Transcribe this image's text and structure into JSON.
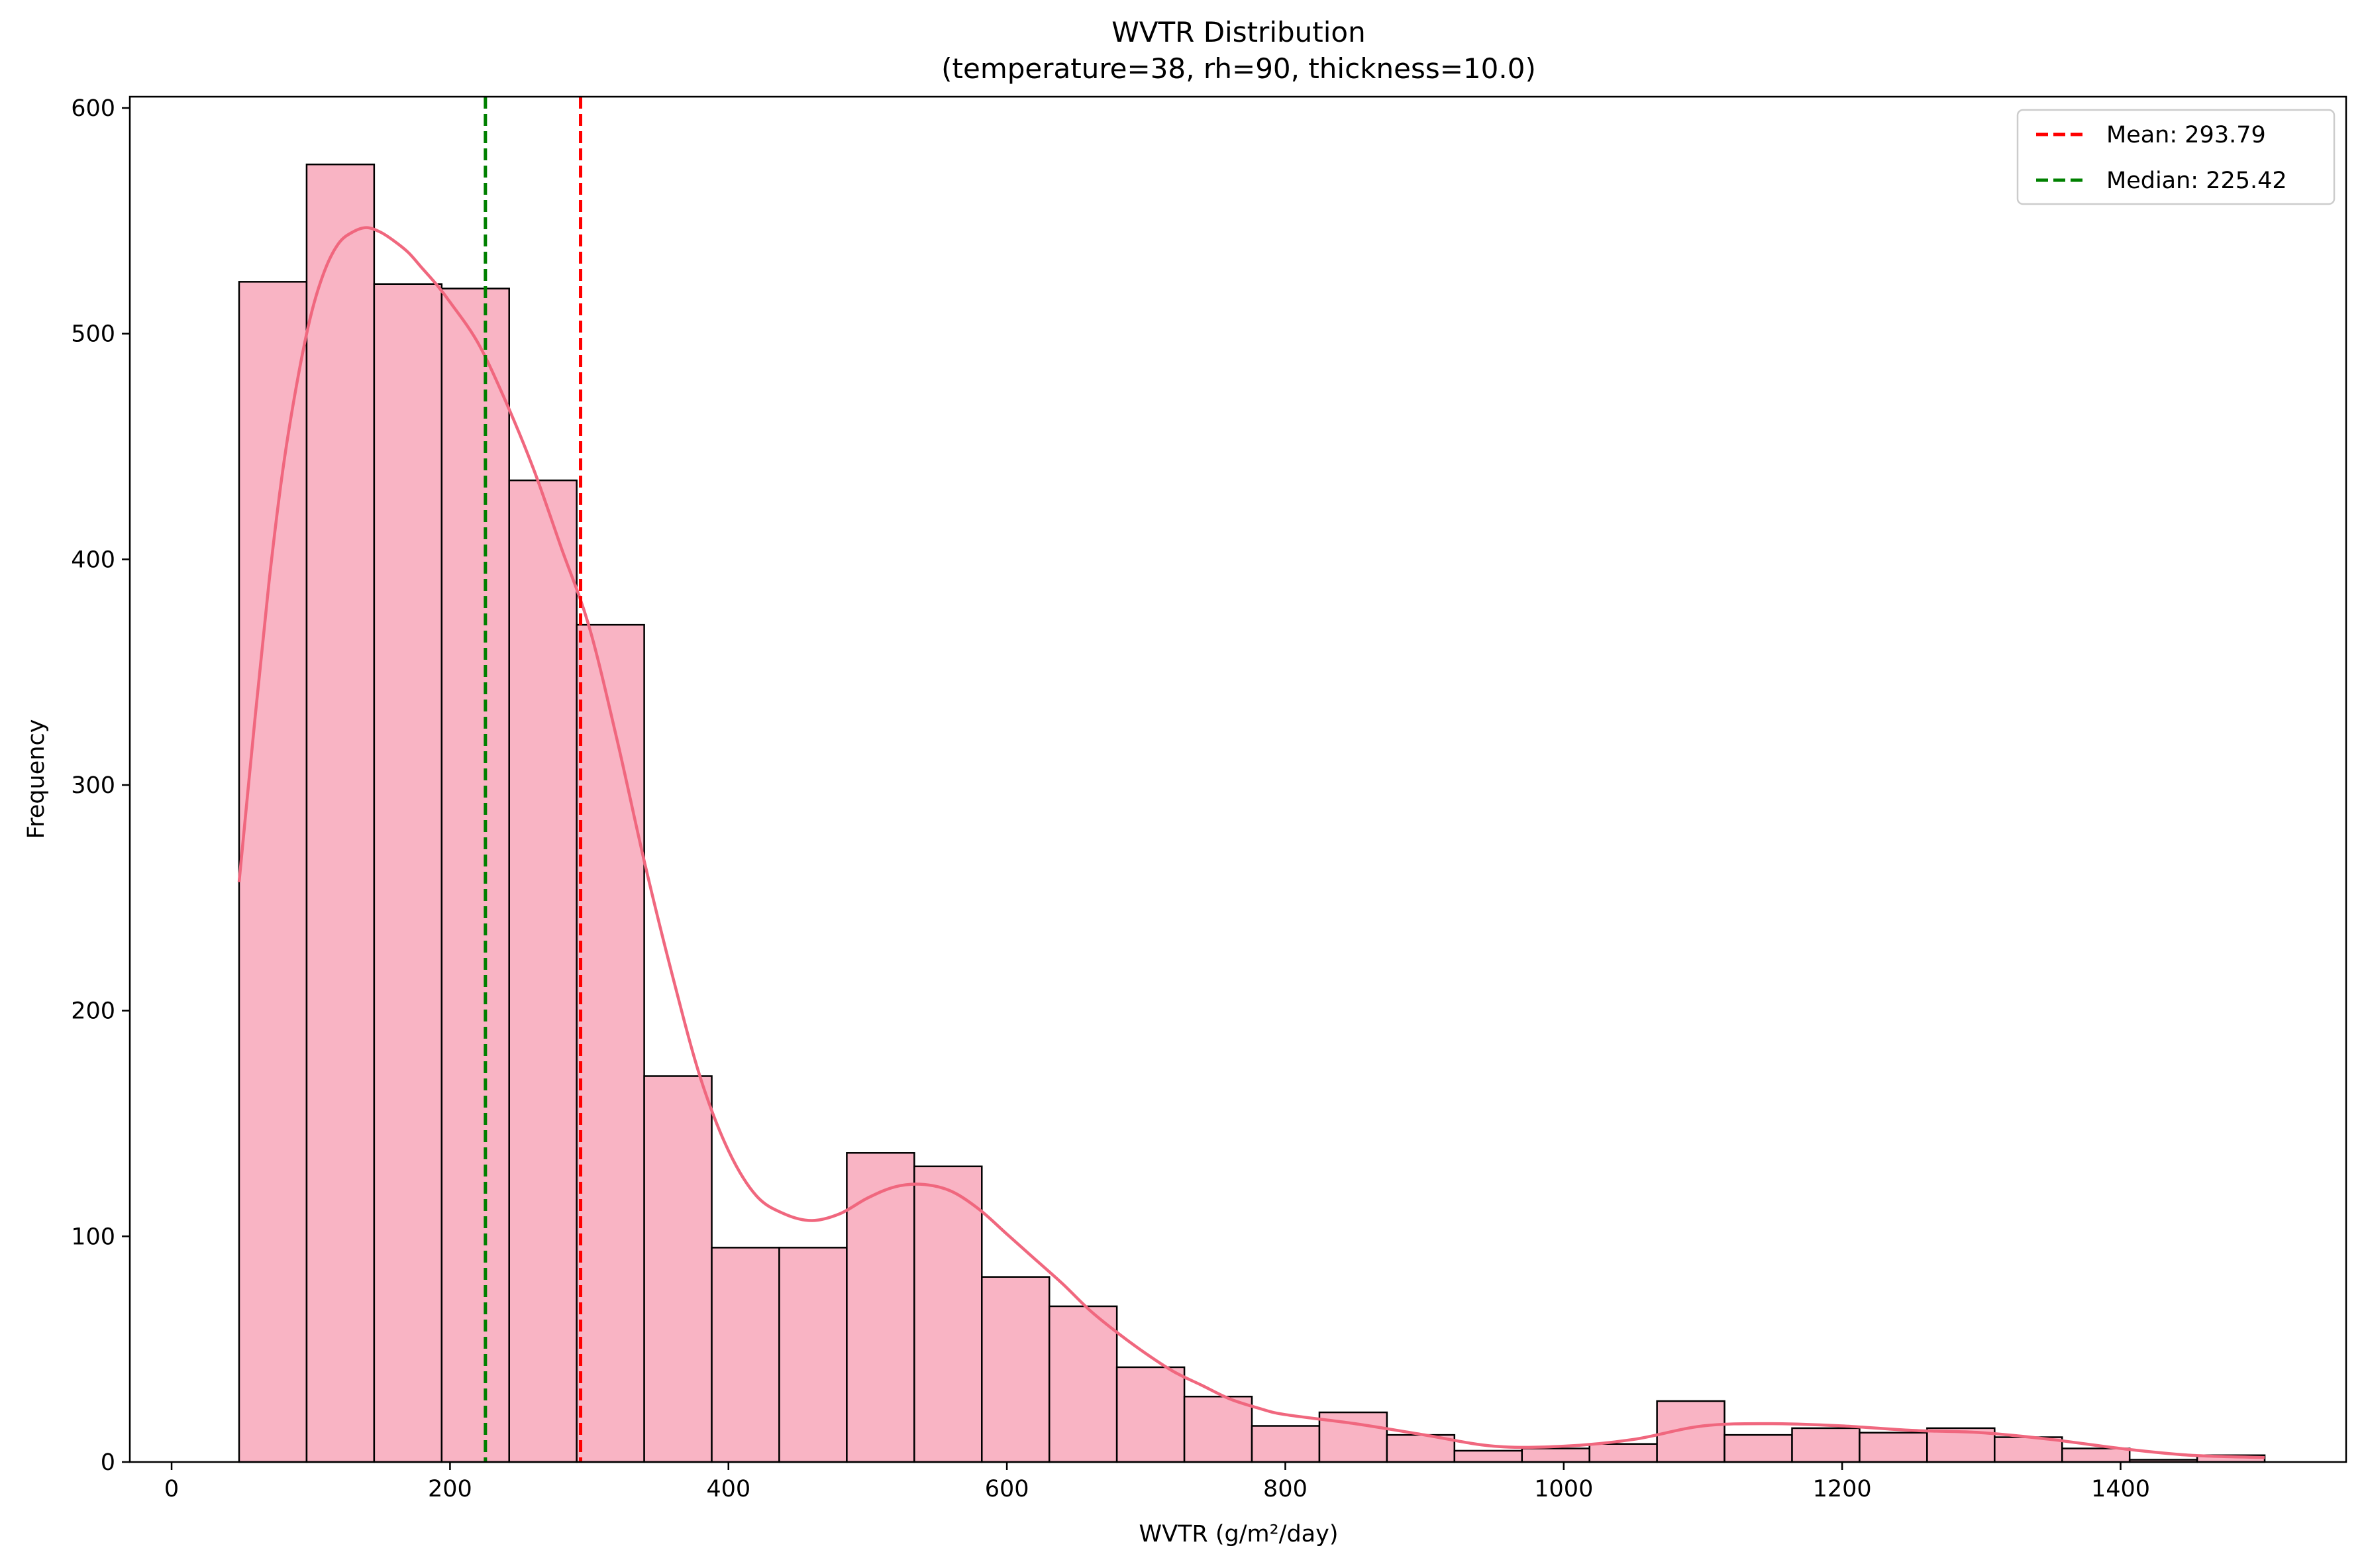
{
  "chart_data": {
    "type": "histogram",
    "title": "WVTR Distribution",
    "subtitle": "(temperature=38, rh=90, thickness=10.0)",
    "xlabel": "WVTR (g/m²/day)",
    "ylabel": "Frequency",
    "xlim": [
      -30,
      1562
    ],
    "ylim": [
      0,
      605
    ],
    "x_ticks": [
      0,
      200,
      400,
      600,
      800,
      1000,
      1200,
      1400
    ],
    "y_ticks": [
      0,
      100,
      200,
      300,
      400,
      500,
      600
    ],
    "grid": false,
    "legend_position": "top-right",
    "bins": [
      {
        "x0": 48.5,
        "x1": 97.0,
        "count": 523
      },
      {
        "x0": 97.0,
        "x1": 145.5,
        "count": 575
      },
      {
        "x0": 145.5,
        "x1": 194.0,
        "count": 522
      },
      {
        "x0": 194.0,
        "x1": 242.5,
        "count": 520
      },
      {
        "x0": 242.5,
        "x1": 291.0,
        "count": 435
      },
      {
        "x0": 291.0,
        "x1": 339.5,
        "count": 371
      },
      {
        "x0": 339.5,
        "x1": 388.0,
        "count": 171
      },
      {
        "x0": 388.0,
        "x1": 436.5,
        "count": 95
      },
      {
        "x0": 436.5,
        "x1": 485.0,
        "count": 95
      },
      {
        "x0": 485.0,
        "x1": 533.5,
        "count": 137
      },
      {
        "x0": 533.5,
        "x1": 582.0,
        "count": 131
      },
      {
        "x0": 582.0,
        "x1": 630.5,
        "count": 82
      },
      {
        "x0": 630.5,
        "x1": 679.0,
        "count": 69
      },
      {
        "x0": 679.0,
        "x1": 727.5,
        "count": 42
      },
      {
        "x0": 727.5,
        "x1": 776.0,
        "count": 29
      },
      {
        "x0": 776.0,
        "x1": 824.5,
        "count": 16
      },
      {
        "x0": 824.5,
        "x1": 873.0,
        "count": 22
      },
      {
        "x0": 873.0,
        "x1": 921.5,
        "count": 12
      },
      {
        "x0": 921.5,
        "x1": 970.0,
        "count": 5
      },
      {
        "x0": 970.0,
        "x1": 1018.5,
        "count": 6
      },
      {
        "x0": 1018.5,
        "x1": 1067.0,
        "count": 8
      },
      {
        "x0": 1067.0,
        "x1": 1115.5,
        "count": 27
      },
      {
        "x0": 1115.5,
        "x1": 1164.0,
        "count": 12
      },
      {
        "x0": 1164.0,
        "x1": 1212.5,
        "count": 15
      },
      {
        "x0": 1212.5,
        "x1": 1261.0,
        "count": 13
      },
      {
        "x0": 1261.0,
        "x1": 1309.5,
        "count": 15
      },
      {
        "x0": 1309.5,
        "x1": 1358.0,
        "count": 11
      },
      {
        "x0": 1358.0,
        "x1": 1406.5,
        "count": 6
      },
      {
        "x0": 1406.5,
        "x1": 1455.0,
        "count": 1
      },
      {
        "x0": 1455.0,
        "x1": 1503.5,
        "count": 3
      }
    ],
    "kde": {
      "x": [
        48.5,
        60,
        70,
        80,
        90,
        100,
        110,
        120,
        130,
        140,
        150,
        160,
        170,
        180,
        190,
        200,
        220,
        240,
        260,
        280,
        300,
        320,
        340,
        360,
        380,
        400,
        420,
        440,
        460,
        480,
        500,
        520,
        540,
        560,
        580,
        600,
        620,
        640,
        660,
        680,
        700,
        720,
        740,
        760,
        780,
        800,
        850,
        900,
        950,
        1000,
        1050,
        1100,
        1150,
        1200,
        1250,
        1300,
        1350,
        1400,
        1450,
        1503.5
      ],
      "y": [
        257,
        330,
        390,
        440,
        478,
        508,
        528,
        540,
        545,
        547,
        545,
        541,
        536,
        529,
        522,
        514,
        496,
        470,
        440,
        405,
        370,
        320,
        265,
        215,
        170,
        138,
        118,
        110,
        107,
        110,
        117,
        122,
        123,
        120,
        112,
        101,
        90,
        79,
        67,
        57,
        48,
        40,
        34,
        28,
        24,
        21,
        17,
        12,
        7,
        7,
        10,
        16,
        17,
        16,
        14,
        13,
        10,
        6,
        3,
        2
      ]
    },
    "reference_lines": [
      {
        "name": "Mean: 293.79",
        "x": 293.79,
        "color": "#ff0000",
        "style": "dashed"
      },
      {
        "name": "Median: 225.42",
        "x": 225.42,
        "color": "#008000",
        "style": "dashed"
      }
    ],
    "colors": {
      "bar_fill": "#f9b4c4",
      "bar_edge": "#000000",
      "kde_line": "#f0677e"
    }
  }
}
